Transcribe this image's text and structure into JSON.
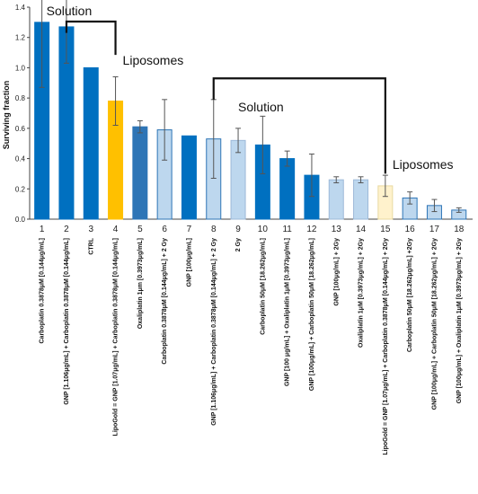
{
  "chart_data": {
    "type": "bar",
    "ylabel": "Surviving fraction",
    "xlabel": "",
    "title": "",
    "ylim": [
      0,
      1.4
    ],
    "yticks": [
      "0.0",
      "0.2",
      "0.4",
      "0.6",
      "0.8",
      "1.0",
      "1.2",
      "1.4"
    ],
    "grid": false,
    "legend": "none",
    "categories": [
      "Carboplatin 0.3878μM [0.144μg/mL]",
      "GNP [1.106μg/mL] + Carboplatin  0.3878μM [0.144μg/mL]",
      "CTRL",
      "LipoGold = GNP [1.07μg/mL] + Carboplatin  0.3878μM [0.144μg/mL]",
      "Oxaliplatin 1μm [0.3973μg/mL]",
      "Carboplatin 0.3878μM [0.144μg/mL] + 2 Gy",
      "GNP [100μg/mL]",
      "GNP [1.106μg/mL] + Carboplatin  0.3878μM [0.144μg/mL] + 2 Gy",
      "2 Gy",
      "Carboplatin 50μM [18.262μg/mL]",
      "GNP [100 μg/mL] + Oxaliplatin 1μM [0.3973μg/mL]",
      "GNP [100μg/mL] + Carboplatin 50μM [18.262μg/mL]",
      "GNP [100μg/mL] + 2Gy",
      "Oxaliplatin 1μM [0.3973μg/mL] + 2Gy",
      "LipoGold = GNP [1.07μg/mL] + Carboplatin  0.3878μM [0.144μg/mL] + 2Gy",
      "Carboplatin 50μM [18.262μg/mL] +2Gy",
      "GNP [100μg/mL] + Carboplatin 50μM [18.262μg/mL] + 2Gy",
      "GNP [100μg/mL] + Oxaliplatin 1μM [0.3973μg/mL] + 2Gy"
    ],
    "numbers": [
      "1",
      "2",
      "3",
      "4",
      "5",
      "6",
      "7",
      "8",
      "9",
      "10",
      "11",
      "12",
      "13",
      "14",
      "15",
      "16",
      "17",
      "18"
    ],
    "values": [
      1.3,
      1.27,
      1.0,
      0.78,
      0.61,
      0.59,
      0.55,
      0.53,
      0.52,
      0.49,
      0.4,
      0.29,
      0.26,
      0.26,
      0.22,
      0.14,
      0.09,
      0.06
    ],
    "errors": [
      0.43,
      0.24,
      0.0,
      0.16,
      0.04,
      0.2,
      0.0,
      0.26,
      0.08,
      0.19,
      0.05,
      0.14,
      0.02,
      0.02,
      0.07,
      0.04,
      0.04,
      0.015
    ],
    "bar_colors": [
      "#0070C0",
      "#0070C0",
      "#0070C0",
      "#FFC000",
      "#2E75B6",
      "#BDD7EE",
      "#0070C0",
      "#BDD7EE",
      "#BDD7EE",
      "#0070C0",
      "#0070C0",
      "#0070C0",
      "#BDD7EE",
      "#BDD7EE",
      "#FFF2CC",
      "#BDD7EE",
      "#BDD7EE",
      "#BDD7EE"
    ],
    "bar_edges": [
      "#0070C0",
      "#0070C0",
      "#0070C0",
      "#FFC000",
      "#2E75B6",
      "#2E75B6",
      "#0070C0",
      "#2E75B6",
      "#9DB9D8",
      "#0070C0",
      "#0070C0",
      "#0070C0",
      "#9DB9D8",
      "#9DB9D8",
      "#E8D9A0",
      "#2E75B6",
      "#2E75B6",
      "#2E75B6"
    ],
    "annotations": [
      {
        "text": "Solution",
        "at_category": 1
      },
      {
        "text": "Liposomes",
        "at_category": 4
      },
      {
        "text": "Solution",
        "at_category": 8
      },
      {
        "text": "Liposomes",
        "at_category": 15
      }
    ]
  }
}
